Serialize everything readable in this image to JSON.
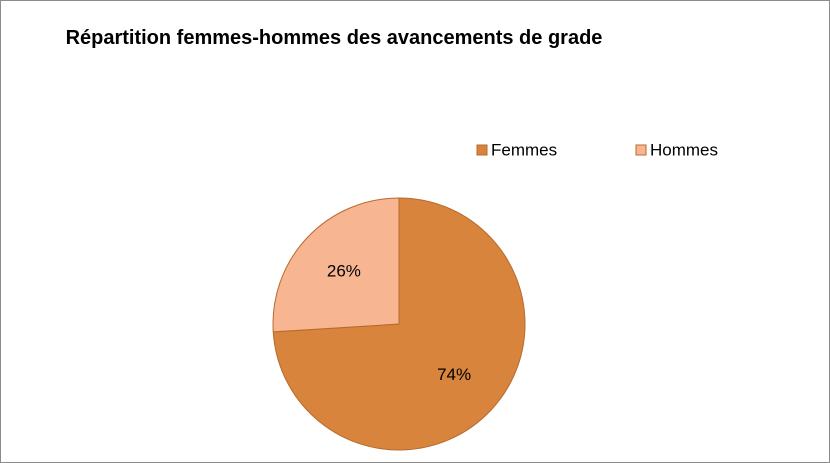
{
  "chart_data": {
    "type": "pie",
    "title": "Répartition femmes-hommes des avancements de grade",
    "categories": [
      "Femmes",
      "Hommes"
    ],
    "values": [
      74,
      26
    ],
    "value_labels": [
      "74%",
      "26%"
    ],
    "colors": [
      "#d9843c",
      "#f8b592"
    ],
    "legend": "top-right"
  }
}
